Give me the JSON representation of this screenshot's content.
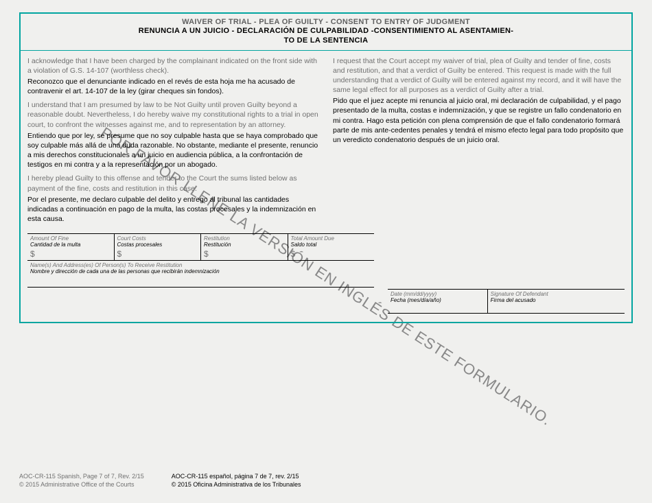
{
  "header": {
    "title_en": "WAIVER OF TRIAL - PLEA OF GUILTY - CONSENT TO ENTRY OF JUDGMENT",
    "title_es_1": "RENUNCIA A UN JUICIO - DECLARACIÓN DE CULPABILIDAD -CONSENTIMIENTO AL ASENTAMIEN-",
    "title_es_2": "TO DE LA SENTENCIA"
  },
  "left": {
    "p1_en": "I acknowledge that I have been charged by the complainant indicated on the front side with a violation of G.S. 14-107 (worthless check).",
    "p1_es": "Reconozco que el denunciante indicado en el revés de esta hoja me ha acusado de contravenir el art. 14-107 de la ley (girar cheques sin fondos).",
    "p2_en": "I understand that I am presumed by law to be Not Guilty until proven Guilty beyond a reasonable doubt.  Nevertheless, I do hereby waive my constitutional rights to a trial in open court, to confront the witnesses against me, and to representation by an attorney.",
    "p2_es": "Entiendo que por ley, se presume que no soy culpable hasta que se haya comprobado que soy culpable más allá de una duda razonable.  No obstante, mediante el presente, renuncio a mis derechos constitucionales a un juicio en audiencia pública, a la confrontación de testigos en mi contra y a la representación por un abogado.",
    "p3_en": "I hereby plead Guilty to this offense and tender to the Court the sums listed below as payment of the fine, costs and restitution in this case.",
    "p3_es": "Por el presente, me declaro culpable del delito y entrego al tribunal las cantidades indicadas a continuación en pago de la multa, las costas procesales y la indemnización en esta causa."
  },
  "right": {
    "p1_en": "I request that the Court accept my waiver of trial, plea of Guilty and tender of fine, costs and restitution, and that a verdict of Guilty be entered.  This request is made with the full understanding that a verdict of Guilty will be entered against my record, and it will have the same legal effect for all purposes as a verdict of Guilty after a trial.",
    "p1_es": "Pido que el juez acepte mi renuncia al juicio oral, mi declaración de culpabilidad, y el pago presentado de la multa, costas e indemnización, y que se registre un fallo condenatorio en mi contra. Hago esta petición con plena comprensión de que el fallo condenatorio formará parte de mis ante-cedentes penales y tendrá el mismo efecto legal para todo propósito que un veredicto condenatorio después de un juicio oral."
  },
  "amounts": {
    "fine_en": "Amount Of Fine",
    "fine_es": "Cantidad de la multa",
    "costs_en": "Court Costs",
    "costs_es": "Costas procesales",
    "rest_en": "Restitution",
    "rest_es": "Restitución",
    "total_en": "Total Amount Due",
    "total_es": "Saldo total",
    "dollar": "$"
  },
  "names": {
    "en": "Name(s) And Address(es) Of Person(s) To Receive Restitution",
    "es": "Nombre y dirección de cada una de las personas que recibirán indemnización"
  },
  "sig": {
    "date_en": "Date (mm/dd/yyyy)",
    "date_es": "Fecha (mes/día/año)",
    "sig_en": "Signature Of Defendant",
    "sig_es": "Firma del acusado"
  },
  "watermark": "POR FAVOR LLENE LA VERSIÓN EN INGLÉS DE ESTE FORMULARIO.",
  "footer": {
    "left_1": "AOC-CR-115 Spanish, Page 7 of 7, Rev. 2/15",
    "left_2": "© 2015 Administrative Office of the Courts",
    "right_1": "AOC-CR-115 español, página 7 de 7, rev. 2/15",
    "right_2": "© 2015 Oficina Administrativa de los Tribunales"
  },
  "colors": {
    "border": "#00a5a0",
    "gray_text": "#707070",
    "black_text": "#000000",
    "background": "#f0f0ee"
  }
}
